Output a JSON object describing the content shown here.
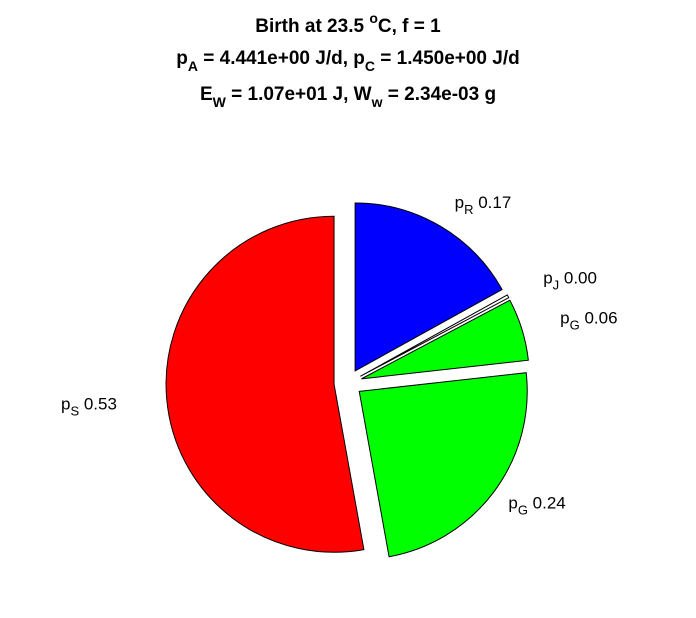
{
  "chart_data": {
    "type": "pie",
    "title_lines": [
      {
        "parts": [
          {
            "t": "Birth at 23.5 "
          },
          {
            "t": "o",
            "sup": true
          },
          {
            "t": "C, f = 1"
          }
        ]
      },
      {
        "parts": [
          {
            "t": "p"
          },
          {
            "t": "A",
            "sub": true
          },
          {
            "t": " = 4.441e+00 J/d, p"
          },
          {
            "t": "C",
            "sub": true
          },
          {
            "t": " = 1.450e+00 J/d"
          }
        ]
      },
      {
        "parts": [
          {
            "t": "E"
          },
          {
            "t": "W",
            "sub": true
          },
          {
            "t": " = 1.07e+01 J, W"
          },
          {
            "t": "w",
            "sub": true
          },
          {
            "t": " = 2.34e-03 g"
          }
        ]
      }
    ],
    "slices": [
      {
        "symbol": "p",
        "subscript": "R",
        "value_label": "0.17",
        "value": 0.17,
        "color": "#0000ff"
      },
      {
        "symbol": "p",
        "subscript": "J",
        "value_label": "0.00",
        "value": 0.003,
        "color": "#ffffff"
      },
      {
        "symbol": "p",
        "subscript": "G",
        "value_label": "0.06",
        "value": 0.06,
        "color": "#00ff00"
      },
      {
        "symbol": "p",
        "subscript": "G",
        "value_label": "0.24",
        "value": 0.24,
        "color": "#00ff00"
      },
      {
        "symbol": "p",
        "subscript": "S",
        "value_label": "0.53",
        "value": 0.53,
        "color": "#ff0000"
      }
    ],
    "exploded": true
  }
}
